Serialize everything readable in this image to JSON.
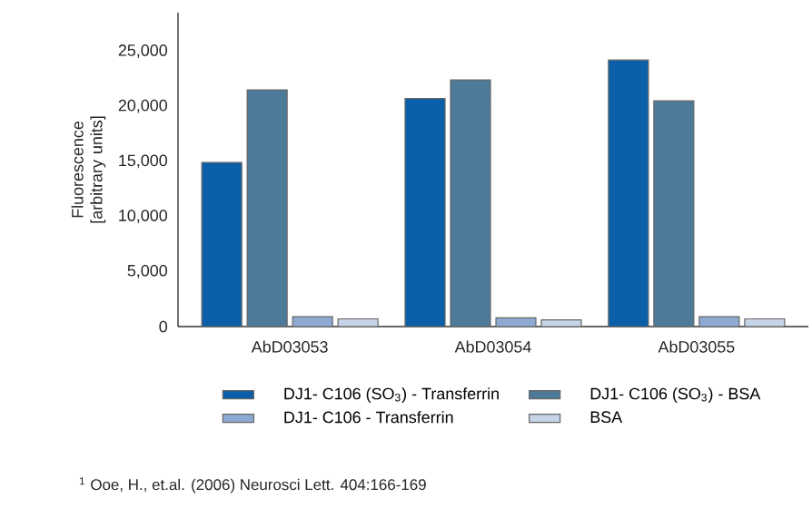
{
  "chart_data": {
    "type": "bar",
    "ylabel": "Fluorescence [arbitrary units]",
    "categories": [
      "AbD03053",
      "AbD03054",
      "AbD03055"
    ],
    "series": [
      {
        "name": "DJ1- C106 (SO$_{3}$) - Transferrin",
        "color": "#0a5fa8",
        "values": [
          14900,
          20700,
          24200
        ]
      },
      {
        "name": "DJ1- C106 (SO$_{3}$) - BSA",
        "color": "#4e7a99",
        "values": [
          21500,
          22400,
          20500
        ]
      },
      {
        "name": "DJ1- C106 - Transferrin",
        "color": "#8eaad3",
        "values": [
          900,
          800,
          900
        ]
      },
      {
        "name": "BSA",
        "color": "#c6d4e8",
        "values": [
          700,
          600,
          700
        ]
      }
    ],
    "ylim": [
      0,
      28500
    ],
    "yticks": [
      0,
      {
        "value": 5000,
        "label": "5,000"
      },
      {
        "value": 10000,
        "label": "10,000"
      },
      {
        "value": 15000,
        "label": "15,000"
      },
      {
        "value": 20000,
        "label": "20,000"
      },
      {
        "value": 25000,
        "label": "25,000"
      }
    ],
    "legend": "bottom",
    "annotations": [
      "$^{1}$ Ooe, H., et.al. (2006) Neurosci Lett. 404:166-169"
    ]
  }
}
